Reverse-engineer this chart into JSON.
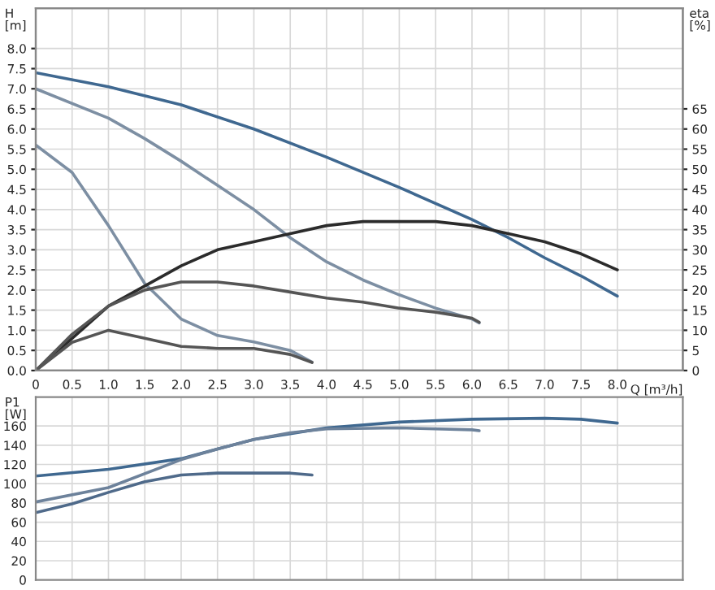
{
  "chart_data": [
    {
      "type": "line",
      "xlabel": "Q [m³/h]",
      "ylabel": "H\n[m]",
      "y2label": "eta\n[%]",
      "xlim": [
        0,
        8.9
      ],
      "xticks": [
        {
          "value": 0,
          "label": "0"
        },
        0.5,
        {
          "value": 1.0,
          "label": "1.0"
        },
        1.5,
        {
          "value": 2.0,
          "label": "2.0"
        },
        2.5,
        {
          "value": 3.0,
          "label": "3.0"
        },
        3.5,
        {
          "value": 4.0,
          "label": "4.0"
        },
        4.5,
        {
          "value": 5.0,
          "label": "5.0"
        },
        5.5,
        {
          "value": 6.0,
          "label": "6.0"
        },
        6.5,
        {
          "value": 7.0,
          "label": "7.0"
        },
        7.5,
        {
          "value": 8.0,
          "label": "8.0"
        }
      ],
      "ylim": [
        0,
        9
      ],
      "yticks": [
        {
          "value": 0,
          "label": "0.0"
        },
        0.5,
        {
          "value": 1,
          "label": "1.0"
        },
        1.5,
        {
          "value": 2,
          "label": "2.0"
        },
        2.5,
        {
          "value": 3,
          "label": "3.0"
        },
        3.5,
        {
          "value": 4,
          "label": "4.0"
        },
        4.5,
        {
          "value": 5,
          "label": "5.0"
        },
        5.5,
        {
          "value": 6,
          "label": "6.0"
        },
        6.5,
        {
          "value": 7,
          "label": "7.0"
        },
        7.5,
        {
          "value": 8,
          "label": "8.0"
        }
      ],
      "y2lim": [
        0,
        90
      ],
      "y2ticks": [
        0,
        5,
        10,
        15,
        20,
        25,
        30,
        35,
        40,
        45,
        50,
        55,
        60,
        65
      ],
      "grid": true,
      "series": [
        {
          "color": "#3f6890",
          "x": [
            0,
            1,
            2,
            3,
            4,
            5,
            6,
            6.5,
            7,
            7.5,
            8
          ],
          "values": [
            7.4,
            7.05,
            6.6,
            6.0,
            5.3,
            4.55,
            3.75,
            3.3,
            2.8,
            2.35,
            1.85
          ]
        },
        {
          "color": "#7d8fa3",
          "x": [
            0,
            1,
            1.5,
            2,
            2.5,
            3,
            3.5,
            4,
            4.5,
            5,
            5.5,
            6,
            6.1
          ],
          "values": [
            7.0,
            6.27,
            5.76,
            5.2,
            4.6,
            4.0,
            3.3,
            2.7,
            2.25,
            1.88,
            1.55,
            1.28,
            1.18
          ]
        },
        {
          "color": "#7d8fa3",
          "x": [
            0,
            0.5,
            1,
            1.5,
            2,
            2.5,
            3,
            3.5,
            3.8
          ],
          "values": [
            5.6,
            4.92,
            3.6,
            2.16,
            1.28,
            0.87,
            0.71,
            0.5,
            0.21
          ]
        },
        {
          "color": "#2b2b2b",
          "axis": "y2",
          "x": [
            0,
            0.5,
            1,
            1.5,
            2,
            2.5,
            3,
            3.5,
            4,
            4.5,
            5,
            5.5,
            6,
            6.5,
            7,
            7.5,
            8
          ],
          "values": [
            0,
            8,
            16,
            21,
            26,
            30,
            32,
            34,
            36,
            37,
            37,
            37,
            36,
            34,
            32,
            29,
            25
          ]
        },
        {
          "color": "#555555",
          "axis": "y2",
          "x": [
            0,
            0.5,
            1,
            1.5,
            2,
            2.5,
            3,
            3.5,
            4,
            4.5,
            5,
            5.5,
            6,
            6.1
          ],
          "values": [
            0,
            9,
            16,
            20,
            22,
            22,
            21,
            19.5,
            18,
            17,
            15.5,
            14.5,
            13,
            12
          ]
        },
        {
          "color": "#555555",
          "axis": "y2",
          "x": [
            0,
            0.5,
            1,
            1.5,
            2,
            2.5,
            3,
            3.5,
            3.8
          ],
          "values": [
            0,
            7,
            10,
            8,
            6,
            5.5,
            5.5,
            4,
            2
          ]
        }
      ]
    },
    {
      "type": "line",
      "ylabel": "P1\n[W]",
      "tick_labels": "y",
      "xlim": [
        0,
        8.9
      ],
      "xticks": [
        0,
        0.5,
        1,
        1.5,
        2,
        2.5,
        3,
        3.5,
        4,
        4.5,
        5,
        5.5,
        6,
        6.5,
        7,
        7.5,
        8
      ],
      "ylim": [
        0,
        190
      ],
      "yticks": [
        0,
        20,
        40,
        60,
        80,
        100,
        120,
        140,
        160
      ],
      "grid": true,
      "series": [
        {
          "color": "#3f6890",
          "x": [
            0,
            1,
            2,
            2.5,
            3,
            3.5,
            4,
            5,
            6,
            7,
            7.5,
            8
          ],
          "values": [
            108,
            115,
            126,
            136,
            146,
            152,
            158,
            164,
            167,
            168,
            167,
            163
          ]
        },
        {
          "color": "#6d829b",
          "x": [
            0,
            1,
            2,
            2.5,
            3,
            3.5,
            4,
            5,
            6,
            6.1
          ],
          "values": [
            81,
            96,
            125,
            136,
            146,
            153,
            157,
            158,
            156,
            155
          ]
        },
        {
          "color": "#4f6a8a",
          "x": [
            0,
            0.5,
            1,
            1.5,
            2,
            2.5,
            3,
            3.5,
            3.8
          ],
          "values": [
            70,
            79,
            91,
            102,
            109,
            111,
            111,
            111,
            109
          ]
        }
      ]
    }
  ]
}
